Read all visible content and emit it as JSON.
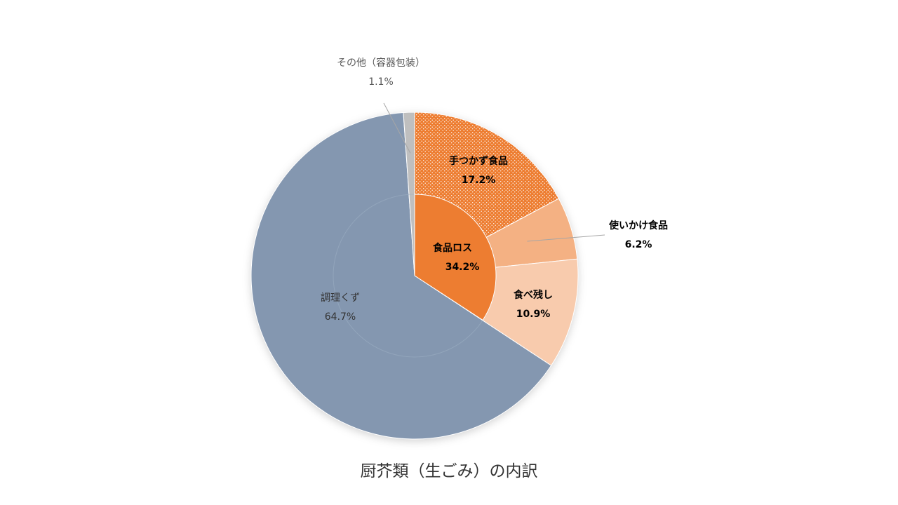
{
  "chart_data": {
    "type": "pie",
    "title": "厨芥類（生ごみ）の内訳",
    "outer": [
      {
        "name": "手つかず食品",
        "label": "17.2%",
        "value": 17.2,
        "color": "#ED7D31",
        "pattern": "dots",
        "label_color": "#000000",
        "bold": true
      },
      {
        "name": "使いかけ食品",
        "label": "6.2%",
        "value": 6.2,
        "color": "#F4B183",
        "label_color": "#000000",
        "bold": true
      },
      {
        "name": "食べ残し",
        "label": "10.9%",
        "value": 10.9,
        "color": "#F8CBAD",
        "label_color": "#000000",
        "bold": true
      },
      {
        "name": "調理くず",
        "label": "64.7%",
        "value": 64.7,
        "color": "#8497B0",
        "label_color": "#333333",
        "bold": false
      },
      {
        "name": "その他（容器包装）",
        "label": "1.1%",
        "value": 1.1,
        "color": "#BFBFBF",
        "label_color": "#595959",
        "bold": false
      }
    ],
    "inner": {
      "name": "食品ロス",
      "label": "34.2%",
      "value": 34.2,
      "color": "#ED7D31"
    },
    "legend": "none"
  }
}
